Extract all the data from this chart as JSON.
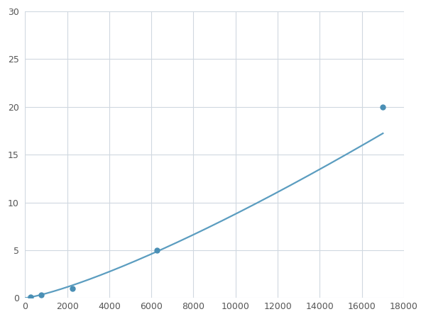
{
  "x": [
    0,
    250,
    750,
    2250,
    6250,
    17000
  ],
  "y": [
    0.0,
    0.1,
    0.3,
    1.0,
    5.0,
    20.0
  ],
  "line_color": "#5b9dc0",
  "marker_x": [
    250,
    750,
    2250,
    6250,
    17000
  ],
  "marker_y": [
    0.1,
    0.3,
    1.0,
    5.0,
    20.0
  ],
  "marker_color": "#4a8fb5",
  "marker_size": 5,
  "line_width": 1.6,
  "xlim": [
    0,
    18000
  ],
  "ylim": [
    0,
    30
  ],
  "xticks": [
    0,
    2000,
    4000,
    6000,
    8000,
    10000,
    12000,
    14000,
    16000,
    18000
  ],
  "yticks": [
    0,
    5,
    10,
    15,
    20,
    25,
    30
  ],
  "grid_color": "#d0d8e0",
  "background_color": "#ffffff",
  "figure_bg": "#ffffff",
  "tick_color": "#555555",
  "tick_fontsize": 9
}
